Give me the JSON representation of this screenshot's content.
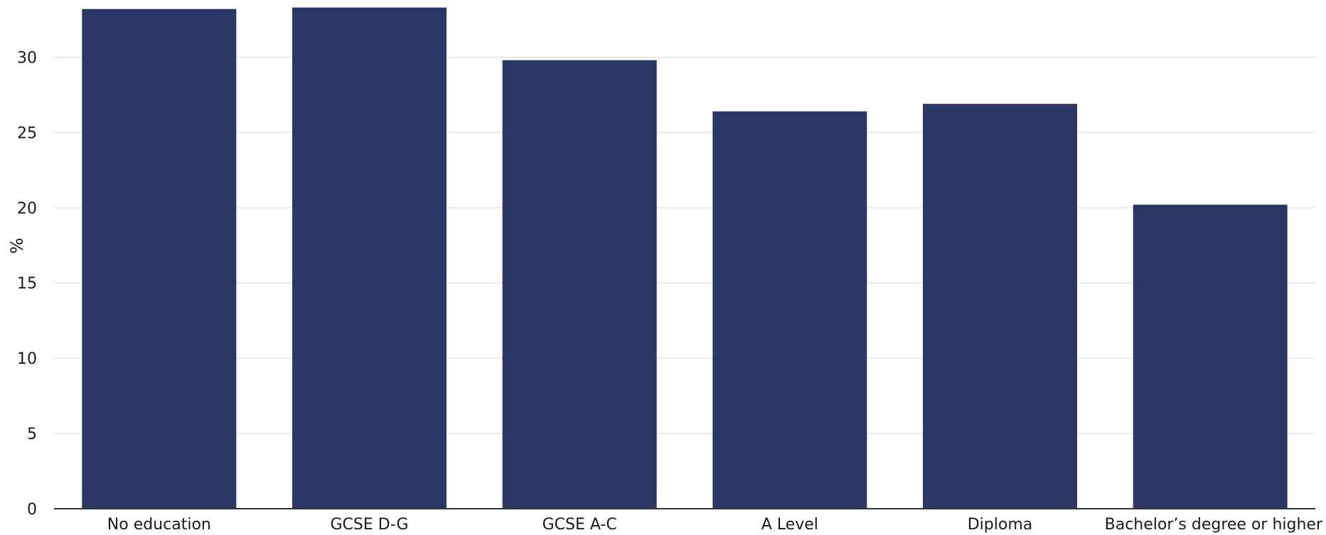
{
  "chart_data": {
    "type": "bar",
    "categories": [
      "No education",
      "GCSE D-G",
      "GCSE A-C",
      "A Level",
      "Diploma",
      "Bachelor’s degree or higher"
    ],
    "values": [
      33.2,
      33.3,
      29.8,
      26.4,
      26.9,
      20.2
    ],
    "title": "",
    "xlabel": "",
    "ylabel": "%",
    "ylim": [
      0,
      33.8
    ],
    "yticks": [
      0,
      5,
      10,
      15,
      20,
      25,
      30
    ],
    "grid": true,
    "bar_color": "#2b3764"
  }
}
